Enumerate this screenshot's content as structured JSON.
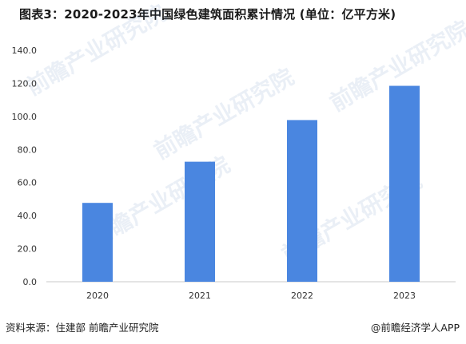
{
  "title": "图表3：2020-2023年中国绿色建筑面积累计情况 (单位：亿平方米)",
  "source": "资料来源：住建部 前瞻产业研究院",
  "credit": "@前瞻经济学人APP",
  "watermark": "前瞻产业研究院",
  "chart_data": {
    "type": "bar",
    "title": "图表3：2020-2023年中国绿色建筑面积累计情况 (单位：亿平方米)",
    "categories": [
      "2020",
      "2021",
      "2022",
      "2023"
    ],
    "series": [
      {
        "values": [
          47.7,
          72.6,
          97.8,
          118.5
        ]
      }
    ],
    "ylim": [
      0,
      140
    ],
    "yticks": [
      "0.0",
      "20.0",
      "40.0",
      "60.0",
      "80.0",
      "100.0",
      "120.0",
      "140.0"
    ],
    "bar_color": "#4a86e0",
    "grid": false,
    "legend": "none"
  }
}
